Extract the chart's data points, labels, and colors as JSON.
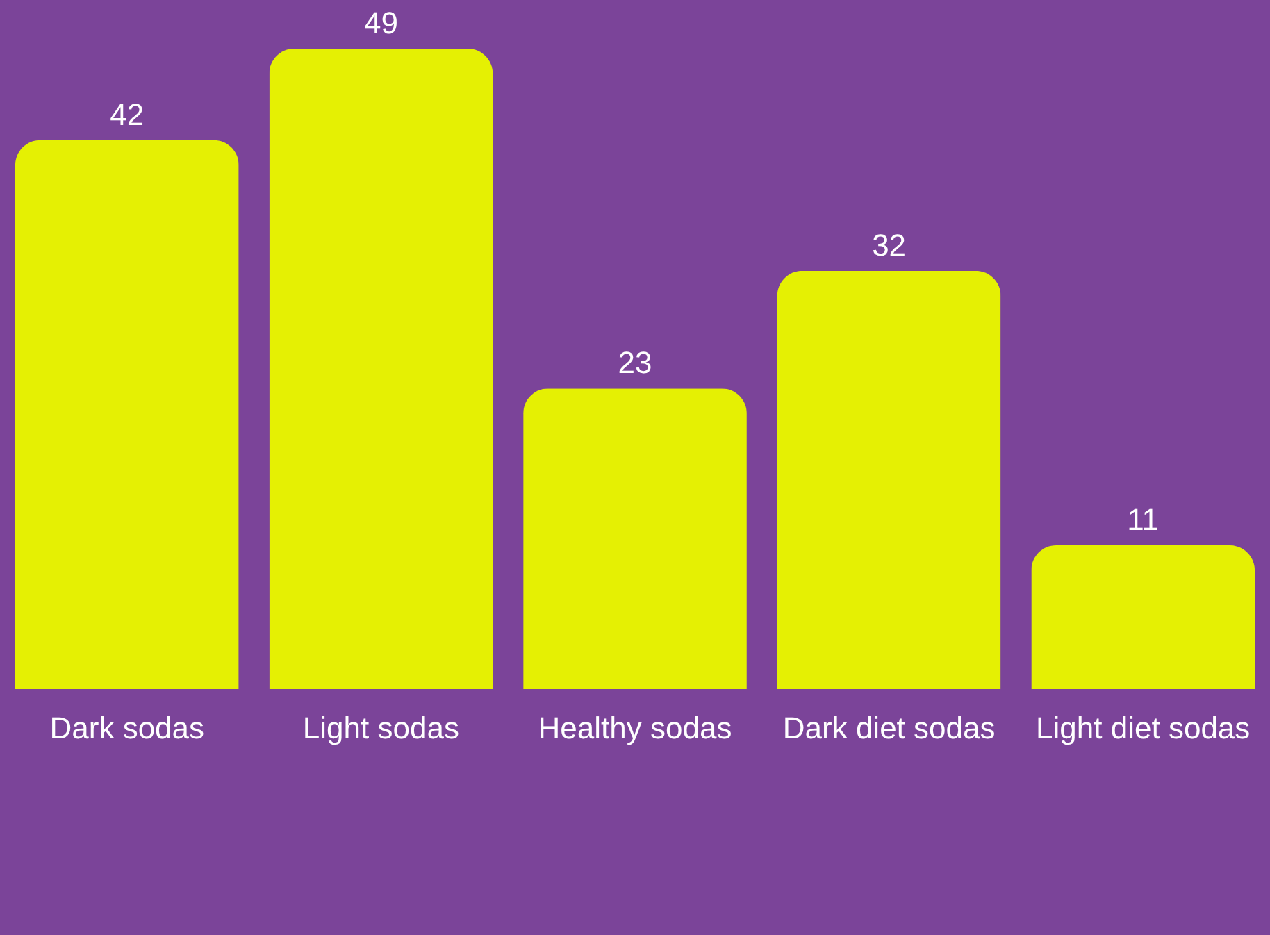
{
  "chart_data": {
    "type": "bar",
    "categories": [
      "Dark sodas",
      "Light sodas",
      "Healthy sodas",
      "Dark diet sodas",
      "Light diet sodas"
    ],
    "values": [
      42,
      49,
      23,
      32,
      11
    ],
    "color": "#e5f003",
    "data_labels": true
  }
}
